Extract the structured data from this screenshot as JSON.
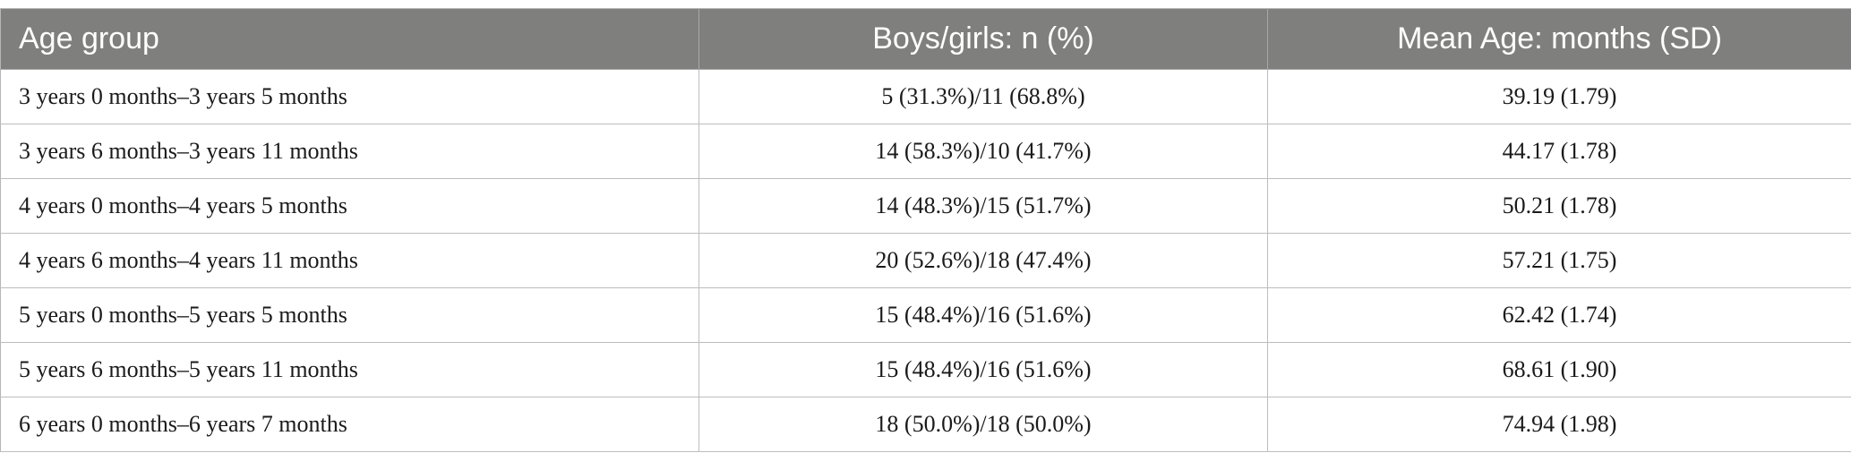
{
  "table": {
    "headers": [
      "Age group",
      "Boys/girls: n (%)",
      "Mean Age: months (SD)"
    ],
    "rows": [
      [
        "3 years 0 months–3 years 5 months",
        "5 (31.3%)/11 (68.8%)",
        "39.19 (1.79)"
      ],
      [
        "3 years 6 months–3 years 11 months",
        "14 (58.3%)/10 (41.7%)",
        "44.17 (1.78)"
      ],
      [
        "4 years 0 months–4 years 5 months",
        "14 (48.3%)/15 (51.7%)",
        "50.21 (1.78)"
      ],
      [
        "4 years 6 months–4 years 11 months",
        "20 (52.6%)/18 (47.4%)",
        "57.21 (1.75)"
      ],
      [
        "5 years 0 months–5 years 5 months",
        "15 (48.4%)/16 (51.6%)",
        "62.42 (1.74)"
      ],
      [
        "5 years 6 months–5 years 11 months",
        "15 (48.4%)/16 (51.6%)",
        "68.61 (1.90)"
      ],
      [
        "6 years 0 months–6 years 7 months",
        "18 (50.0%)/18 (50.0%)",
        "74.94 (1.98)"
      ]
    ]
  },
  "colors": {
    "header_bg": "#7f7f7e",
    "header_text": "#ffffff",
    "border": "#bdbdbd"
  }
}
